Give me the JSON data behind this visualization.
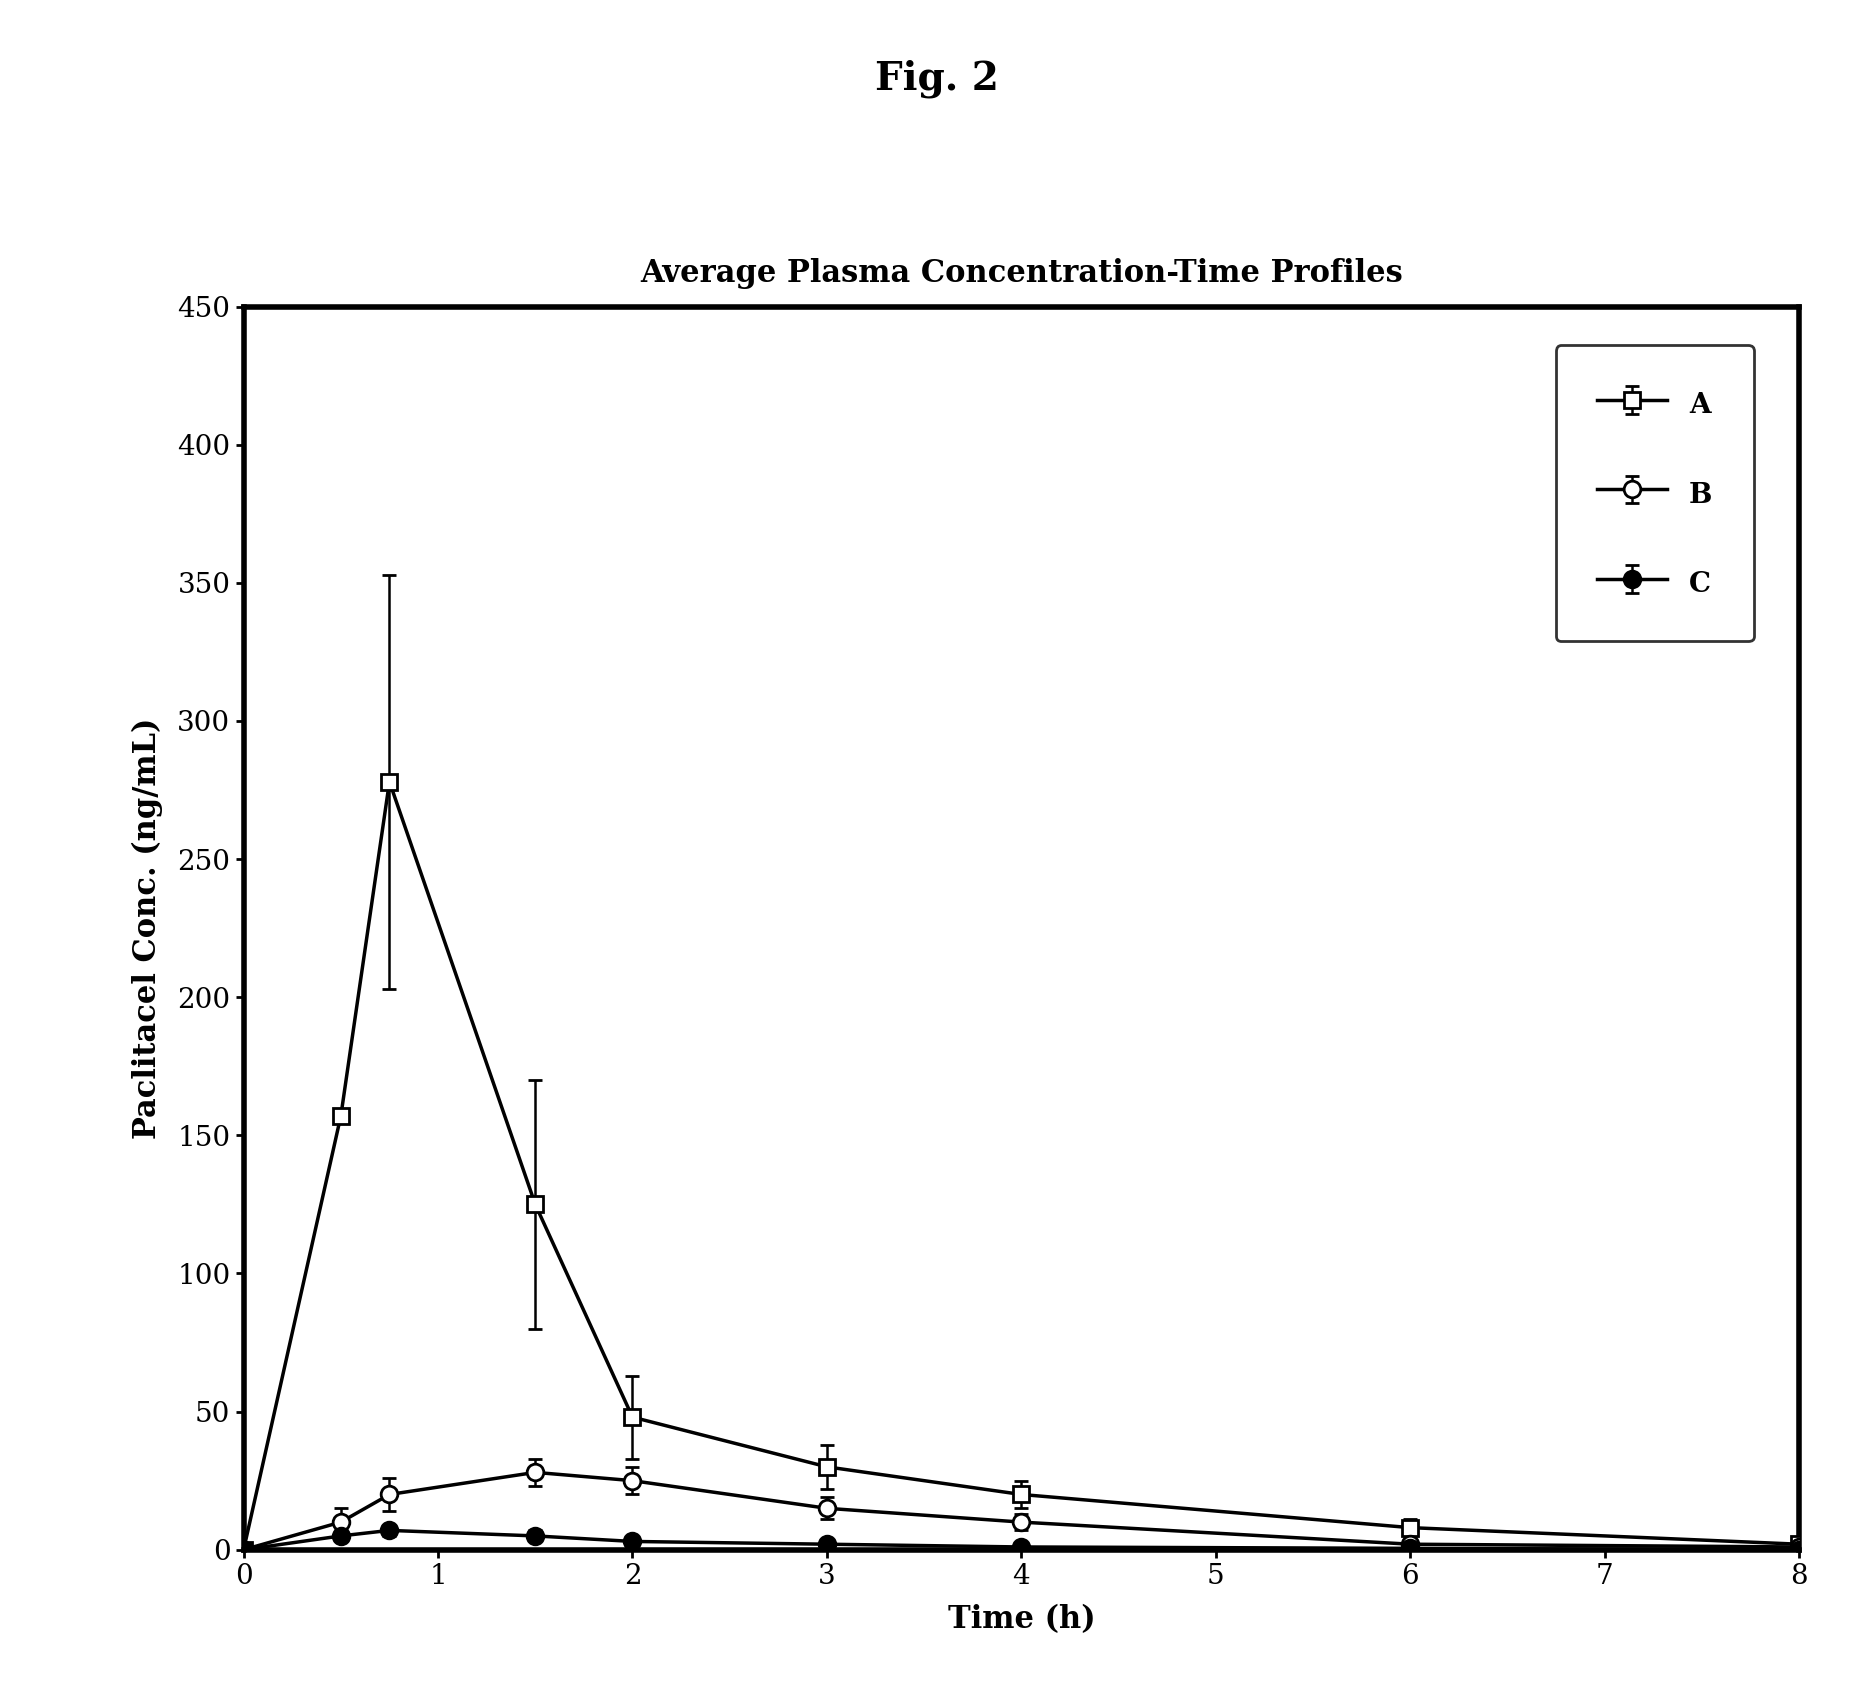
{
  "title": "Average Plasma Concentration-Time Profiles",
  "fig_label": "Fig. 2",
  "xlabel": "Time (h)",
  "ylabel": "Paclitacel Conc. (ng/mL)",
  "xlim": [
    0,
    8
  ],
  "ylim": [
    0,
    450
  ],
  "yticks": [
    0,
    50,
    100,
    150,
    200,
    250,
    300,
    350,
    400,
    450
  ],
  "xticks": [
    0,
    1,
    2,
    3,
    4,
    5,
    6,
    7,
    8
  ],
  "series_A": {
    "x": [
      0,
      0.5,
      0.75,
      1.5,
      2,
      3,
      4,
      6,
      8
    ],
    "y": [
      0,
      157,
      278,
      125,
      48,
      30,
      20,
      8,
      2
    ],
    "yerr": [
      0,
      0,
      75,
      45,
      15,
      8,
      5,
      3,
      1
    ],
    "label": "A",
    "marker": "s",
    "color": "#000000",
    "markersize": 12,
    "markerfacecolor": "white"
  },
  "series_B": {
    "x": [
      0,
      0.5,
      0.75,
      1.5,
      2,
      3,
      4,
      6,
      8
    ],
    "y": [
      0,
      10,
      20,
      28,
      25,
      15,
      10,
      2,
      1
    ],
    "yerr": [
      0,
      5,
      6,
      5,
      5,
      4,
      3,
      1,
      0.5
    ],
    "label": "B",
    "marker": "o",
    "color": "#000000",
    "markersize": 12,
    "markerfacecolor": "white"
  },
  "series_C": {
    "x": [
      0,
      0.5,
      0.75,
      1.5,
      2,
      3,
      4,
      6,
      8
    ],
    "y": [
      0,
      5,
      7,
      5,
      3,
      2,
      1,
      0.5,
      0
    ],
    "yerr": [
      0,
      2,
      2,
      2,
      1,
      1,
      0.5,
      0.3,
      0
    ],
    "label": "C",
    "marker": "o",
    "color": "#000000",
    "markersize": 12,
    "markerfacecolor": "#000000"
  },
  "linewidth": 2.5,
  "background_color": "#ffffff",
  "fig_label_fontsize": 28,
  "title_fontsize": 22,
  "axis_label_fontsize": 22,
  "tick_fontsize": 20
}
